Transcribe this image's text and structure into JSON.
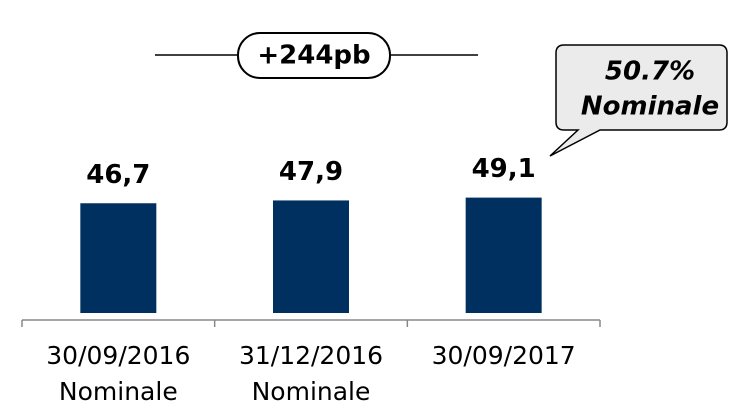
{
  "chart_data": {
    "type": "bar",
    "categories": [
      [
        "30/09/2016",
        "Nominale"
      ],
      [
        "31/12/2016",
        "Nominale"
      ],
      [
        "30/09/2017"
      ]
    ],
    "values": [
      46.7,
      47.9,
      49.1
    ],
    "value_labels": [
      "46,7",
      "47,9",
      "49,1"
    ],
    "color": "#00305f",
    "ylim": [
      0,
      60
    ],
    "annotations": [
      "+244pb",
      [
        "50.7%",
        "Nominale"
      ]
    ]
  }
}
